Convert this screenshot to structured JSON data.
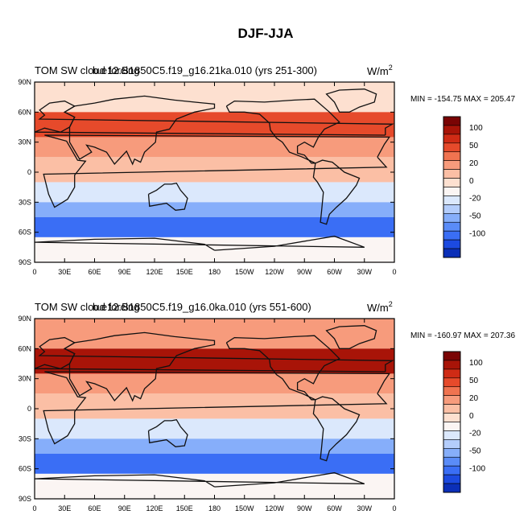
{
  "figure_title": "DJF-JJA",
  "chart_data": [
    {
      "type": "heatmap",
      "title": "TOM SW cloud forcing",
      "overlay_title": "b.e12.B1850C5.f19_g16.21ka.010 (yrs 251-300)",
      "units_label": "W/m",
      "units_exponent": "2",
      "min_max_label": "MIN = -154.75 MAX = 205.47",
      "min": -154.75,
      "max": 205.47,
      "x_ticks": [
        "0",
        "30E",
        "60E",
        "90E",
        "120E",
        "150E",
        "180",
        "150W",
        "120W",
        "90W",
        "60W",
        "30W",
        "0"
      ],
      "y_ticks": [
        "90N",
        "60N",
        "30N",
        "0",
        "30S",
        "60S",
        "90S"
      ],
      "xlim": [
        0,
        360
      ],
      "ylim": [
        -90,
        90
      ],
      "zonal_bands": [
        {
          "lat_range": [
            60,
            90
          ],
          "value": 5
        },
        {
          "lat_range": [
            35,
            60
          ],
          "value": 60
        },
        {
          "lat_range": [
            15,
            35
          ],
          "value": 30
        },
        {
          "lat_range": [
            -10,
            15
          ],
          "value": 10
        },
        {
          "lat_range": [
            -30,
            -10
          ],
          "value": -15
        },
        {
          "lat_range": [
            -45,
            -30
          ],
          "value": -40
        },
        {
          "lat_range": [
            -65,
            -45
          ],
          "value": -80
        },
        {
          "lat_range": [
            -90,
            -65
          ],
          "value": -10
        }
      ]
    },
    {
      "type": "heatmap",
      "title": "TOM SW cloud forcing",
      "overlay_title": "b.e12.B1850C5.f19_g16.0ka.010 (yrs 551-600)",
      "units_label": "W/m",
      "units_exponent": "2",
      "min_max_label": "MIN = -160.97 MAX = 207.36",
      "min": -160.97,
      "max": 207.36,
      "x_ticks": [
        "0",
        "30E",
        "60E",
        "90E",
        "120E",
        "150E",
        "180",
        "150W",
        "120W",
        "90W",
        "60W",
        "30W",
        "0"
      ],
      "y_ticks": [
        "90N",
        "60N",
        "30N",
        "0",
        "30S",
        "60S",
        "90S"
      ],
      "xlim": [
        0,
        360
      ],
      "ylim": [
        -90,
        90
      ],
      "zonal_bands": [
        {
          "lat_range": [
            60,
            90
          ],
          "value": 20
        },
        {
          "lat_range": [
            35,
            60
          ],
          "value": 80
        },
        {
          "lat_range": [
            15,
            35
          ],
          "value": 30
        },
        {
          "lat_range": [
            -10,
            15
          ],
          "value": 10
        },
        {
          "lat_range": [
            -30,
            -10
          ],
          "value": -15
        },
        {
          "lat_range": [
            -45,
            -30
          ],
          "value": -40
        },
        {
          "lat_range": [
            -65,
            -45
          ],
          "value": -80
        },
        {
          "lat_range": [
            -90,
            -65
          ],
          "value": -10
        }
      ]
    }
  ],
  "colorbar": {
    "labels": [
      "100",
      "50",
      "20",
      "0",
      "-20",
      "-50",
      "-100"
    ],
    "levels": [
      -120,
      -100,
      -80,
      -65,
      -50,
      -35,
      -20,
      -10,
      0,
      10,
      20,
      35,
      50,
      65,
      80,
      100,
      120
    ],
    "colors": [
      "#08086b",
      "#0b2fb8",
      "#1c4ae0",
      "#3a6ef5",
      "#5a8cf8",
      "#86aefa",
      "#b4cdfb",
      "#dbe8fc",
      "#fbf5f3",
      "#fde0d0",
      "#fbbfa5",
      "#f79b7c",
      "#f07350",
      "#e64a2b",
      "#cf2b15",
      "#a81408",
      "#7a0404",
      "#7a0404"
    ]
  }
}
